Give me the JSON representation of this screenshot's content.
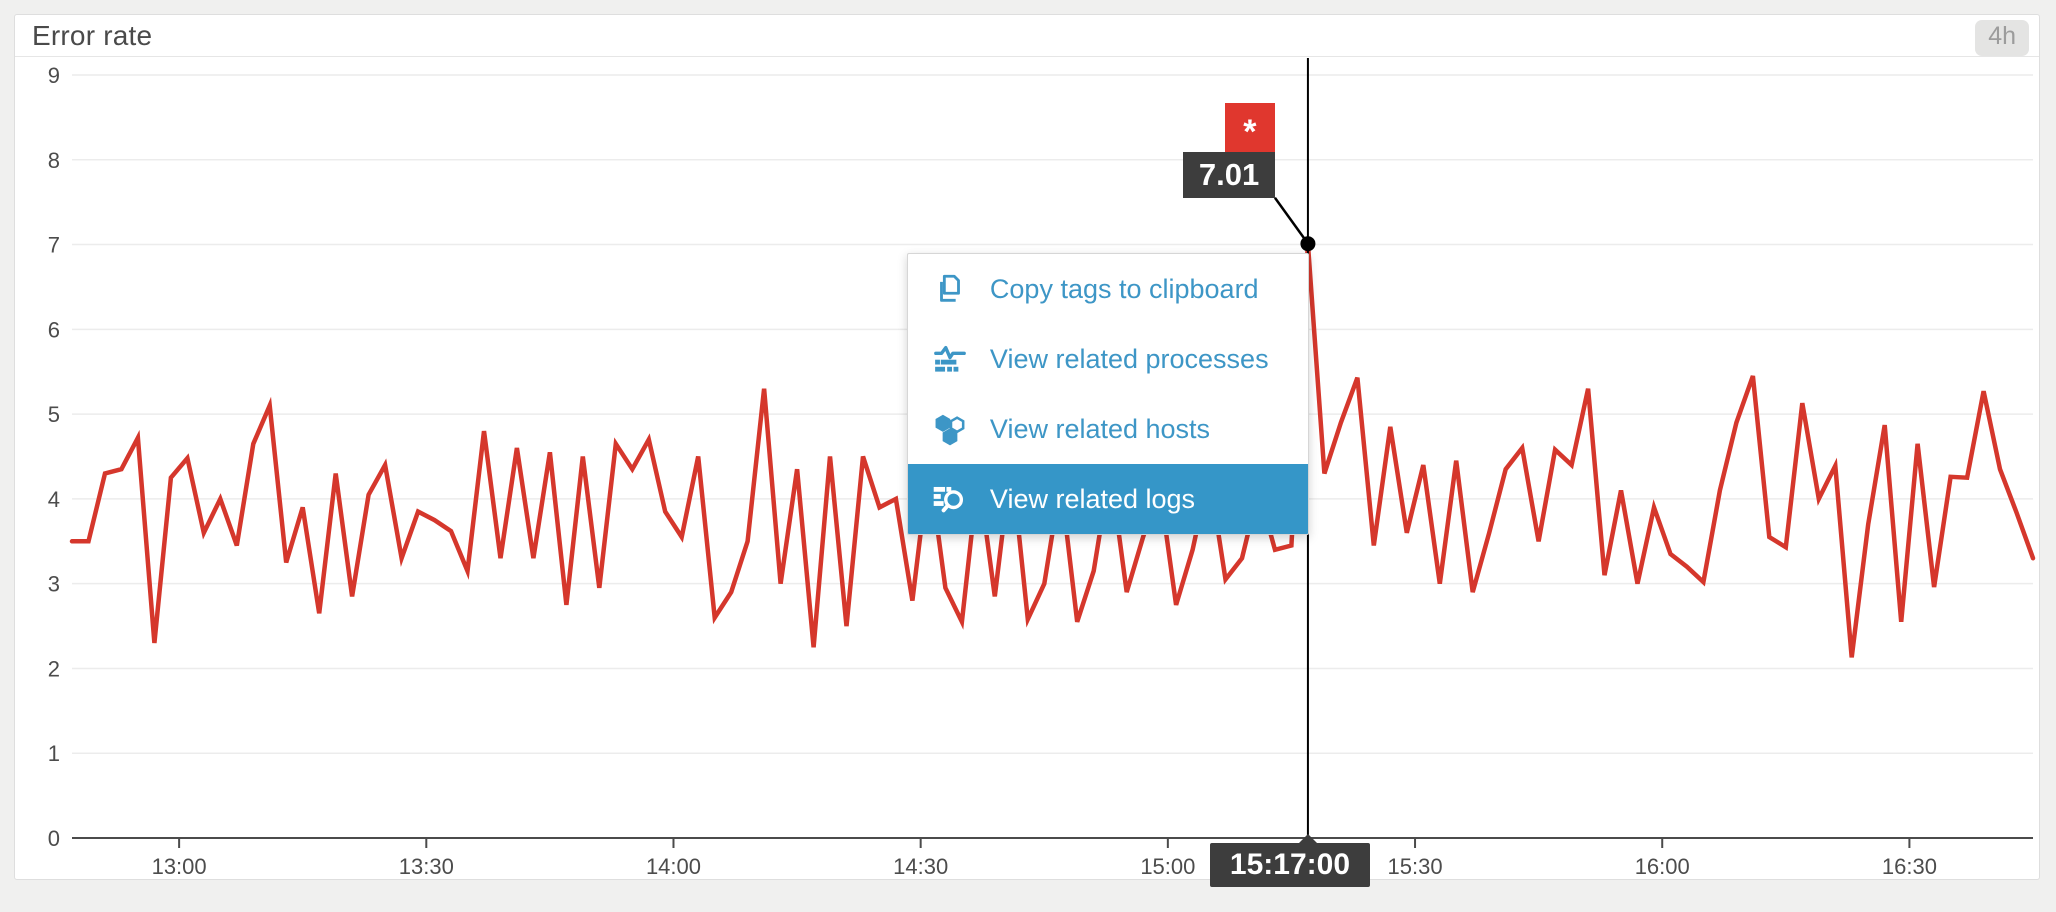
{
  "window": {
    "title": "Error rate",
    "time_range_badge": "4h"
  },
  "menu": {
    "items": [
      {
        "label": "Copy tags to clipboard",
        "icon": "copy-icon",
        "highlighted": false
      },
      {
        "label": "View related processes",
        "icon": "processes-icon",
        "highlighted": false
      },
      {
        "label": "View related hosts",
        "icon": "hosts-icon",
        "highlighted": false
      },
      {
        "label": "View related logs",
        "icon": "logs-icon",
        "highlighted": true
      }
    ]
  },
  "tooltip": {
    "flag": "*",
    "value": "7.01",
    "time": "15:17:00"
  },
  "colors": {
    "line_red": "#d5372c",
    "flag_red": "#e0372e",
    "link_blue": "#3d96c6",
    "highlight_blue": "#3596c8",
    "tooltip_dark": "#3d3d3d",
    "grid_gray": "#ececec",
    "axis_gray": "#4b4b4b",
    "crosshair_black": "#000000"
  },
  "chart_data": {
    "type": "line",
    "title": "Error rate",
    "xlabel": "",
    "ylabel": "",
    "x_start": "12:47",
    "interval_minutes": 2,
    "x_tick_labels": [
      "13:00",
      "13:30",
      "14:00",
      "14:30",
      "15:00",
      "15:30",
      "16:00",
      "16:30"
    ],
    "ylim": [
      0,
      9
    ],
    "ytick_step": 1,
    "grid": true,
    "legend": "none",
    "values": [
      3.5,
      3.5,
      4.3,
      4.35,
      4.72,
      2.3,
      4.25,
      4.48,
      3.6,
      4.0,
      3.45,
      4.65,
      5.1,
      3.25,
      3.9,
      2.65,
      4.3,
      2.85,
      4.05,
      4.4,
      3.3,
      3.85,
      3.75,
      3.62,
      3.15,
      4.8,
      3.3,
      4.6,
      3.3,
      4.55,
      2.75,
      4.5,
      2.95,
      4.65,
      4.35,
      4.7,
      3.85,
      3.55,
      4.5,
      2.6,
      2.9,
      3.5,
      5.3,
      3.0,
      4.35,
      2.25,
      4.5,
      2.5,
      4.5,
      3.9,
      4.0,
      2.8,
      4.4,
      2.95,
      2.55,
      4.3,
      2.85,
      4.45,
      2.58,
      3.0,
      4.2,
      2.55,
      3.15,
      4.35,
      2.9,
      3.55,
      4.15,
      2.75,
      3.4,
      4.3,
      3.05,
      3.3,
      4.1,
      3.4,
      3.45,
      7.01,
      4.3,
      4.9,
      5.43,
      3.45,
      4.85,
      3.6,
      4.4,
      3.0,
      4.45,
      2.9,
      3.6,
      4.35,
      4.6,
      3.5,
      4.58,
      4.4,
      5.3,
      3.1,
      4.1,
      3.0,
      3.9,
      3.35,
      3.2,
      3.02,
      4.1,
      4.9,
      5.45,
      3.55,
      3.43,
      5.13,
      4.0,
      4.39,
      2.13,
      3.7,
      4.87,
      2.55,
      4.65,
      2.96,
      4.26,
      4.25,
      5.27,
      4.35,
      3.84,
      3.3
    ],
    "marked_point": {
      "index": 75,
      "time": "15:17:00",
      "value": 7.01,
      "flag": "*"
    }
  }
}
